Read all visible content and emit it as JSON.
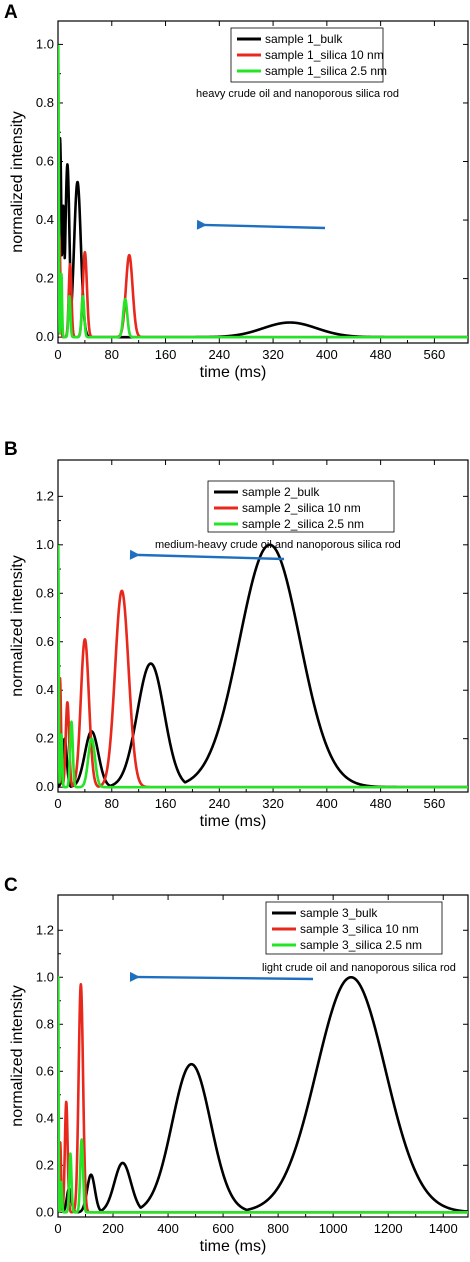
{
  "chart_data": [
    {
      "type": "line",
      "panel_label": "A",
      "xlabel": "time (ms)",
      "ylabel": "normalized intensity",
      "xlim": [
        0,
        610
      ],
      "ylim": [
        -0.02,
        1.08
      ],
      "xticks": [
        0,
        80,
        160,
        240,
        320,
        400,
        480,
        560
      ],
      "yticks": [
        0.0,
        0.2,
        0.4,
        0.6,
        0.8,
        1.0
      ],
      "legend": "top-right, inside plot area, boxed",
      "annotation": "heavy crude oil and nanoporous silica rod",
      "arrow_color": "#1f6fc1",
      "series": [
        {
          "name": "sample 1_bulk",
          "color": "#000000",
          "peaks": [
            [
              3,
              0.68,
              2
            ],
            [
              8,
              0.45,
              2
            ],
            [
              14,
              0.59,
              3
            ],
            [
              29,
              0.53,
              5
            ],
            [
              345,
              0.05,
              40
            ]
          ]
        },
        {
          "name": "sample 1_silica 10 nm",
          "color": "#e8281c",
          "peaks": [
            [
              2,
              0.35,
              1.5
            ],
            [
              18,
              0.25,
              2
            ],
            [
              40,
              0.29,
              3
            ],
            [
              106,
              0.28,
              5
            ]
          ]
        },
        {
          "name": "sample 1_silica 2.5 nm",
          "color": "#25e325",
          "peaks": [
            [
              0.5,
              1.0,
              0.6
            ],
            [
              5,
              0.22,
              1
            ],
            [
              17,
              0.14,
              1.5
            ],
            [
              37,
              0.14,
              2
            ],
            [
              100,
              0.13,
              3
            ]
          ]
        }
      ]
    },
    {
      "type": "line",
      "panel_label": "B",
      "xlabel": "time (ms)",
      "ylabel": "normalized intensity",
      "xlim": [
        0,
        610
      ],
      "ylim": [
        -0.02,
        1.35
      ],
      "xticks": [
        0,
        80,
        160,
        240,
        320,
        400,
        480,
        560
      ],
      "yticks": [
        0.0,
        0.2,
        0.4,
        0.6,
        0.8,
        1.0,
        1.2
      ],
      "legend": "top-center, inside plot area, boxed",
      "annotation": "medium-heavy crude oil and nanoporous silica rod",
      "arrow_color": "#1f6fc1",
      "series": [
        {
          "name": "sample 2_bulk",
          "color": "#000000",
          "peaks": [
            [
              10,
              0.2,
              3
            ],
            [
              50,
              0.23,
              10
            ],
            [
              138,
              0.51,
              20
            ],
            [
              315,
              1.0,
              45
            ]
          ]
        },
        {
          "name": "sample 2_silica 10 nm",
          "color": "#e8281c",
          "peaks": [
            [
              3,
              0.45,
              1.5
            ],
            [
              14,
              0.35,
              2.5
            ],
            [
              40,
              0.61,
              6
            ],
            [
              95,
              0.81,
              10
            ]
          ]
        },
        {
          "name": "sample 2_silica 2.5 nm",
          "color": "#25e325",
          "peaks": [
            [
              0.5,
              1.0,
              0.6
            ],
            [
              5,
              0.22,
              1.2
            ],
            [
              20,
              0.27,
              2
            ],
            [
              50,
              0.2,
              5
            ]
          ]
        }
      ]
    },
    {
      "type": "line",
      "panel_label": "C",
      "xlabel": "time (ms)",
      "ylabel": "normalized intensity",
      "xlim": [
        0,
        1490
      ],
      "ylim": [
        -0.02,
        1.35
      ],
      "xticks": [
        0,
        200,
        400,
        600,
        800,
        1000,
        1200,
        1400
      ],
      "yticks": [
        0.0,
        0.2,
        0.4,
        0.6,
        0.8,
        1.0,
        1.2
      ],
      "legend": "top-right, inside plot area, boxed",
      "annotation": "light crude oil and nanoporous silica rod",
      "arrow_color": "#1f6fc1",
      "series": [
        {
          "name": "sample 3_bulk",
          "color": "#000000",
          "peaks": [
            [
              10,
              0.1,
              4
            ],
            [
              40,
              0.1,
              8
            ],
            [
              120,
              0.16,
              14
            ],
            [
              235,
              0.21,
              30
            ],
            [
              485,
              0.63,
              70
            ],
            [
              1065,
              1.0,
              125
            ]
          ]
        },
        {
          "name": "sample 3_silica 10 nm",
          "color": "#e8281c",
          "peaks": [
            [
              8,
              0.3,
              3
            ],
            [
              30,
              0.47,
              5
            ],
            [
              83,
              0.97,
              8
            ]
          ]
        },
        {
          "name": "sample 3_silica 2.5 nm",
          "color": "#25e325",
          "peaks": [
            [
              1,
              1.0,
              1.2
            ],
            [
              12,
              0.13,
              2.5
            ],
            [
              45,
              0.25,
              4
            ],
            [
              86,
              0.31,
              5
            ]
          ]
        }
      ]
    }
  ]
}
